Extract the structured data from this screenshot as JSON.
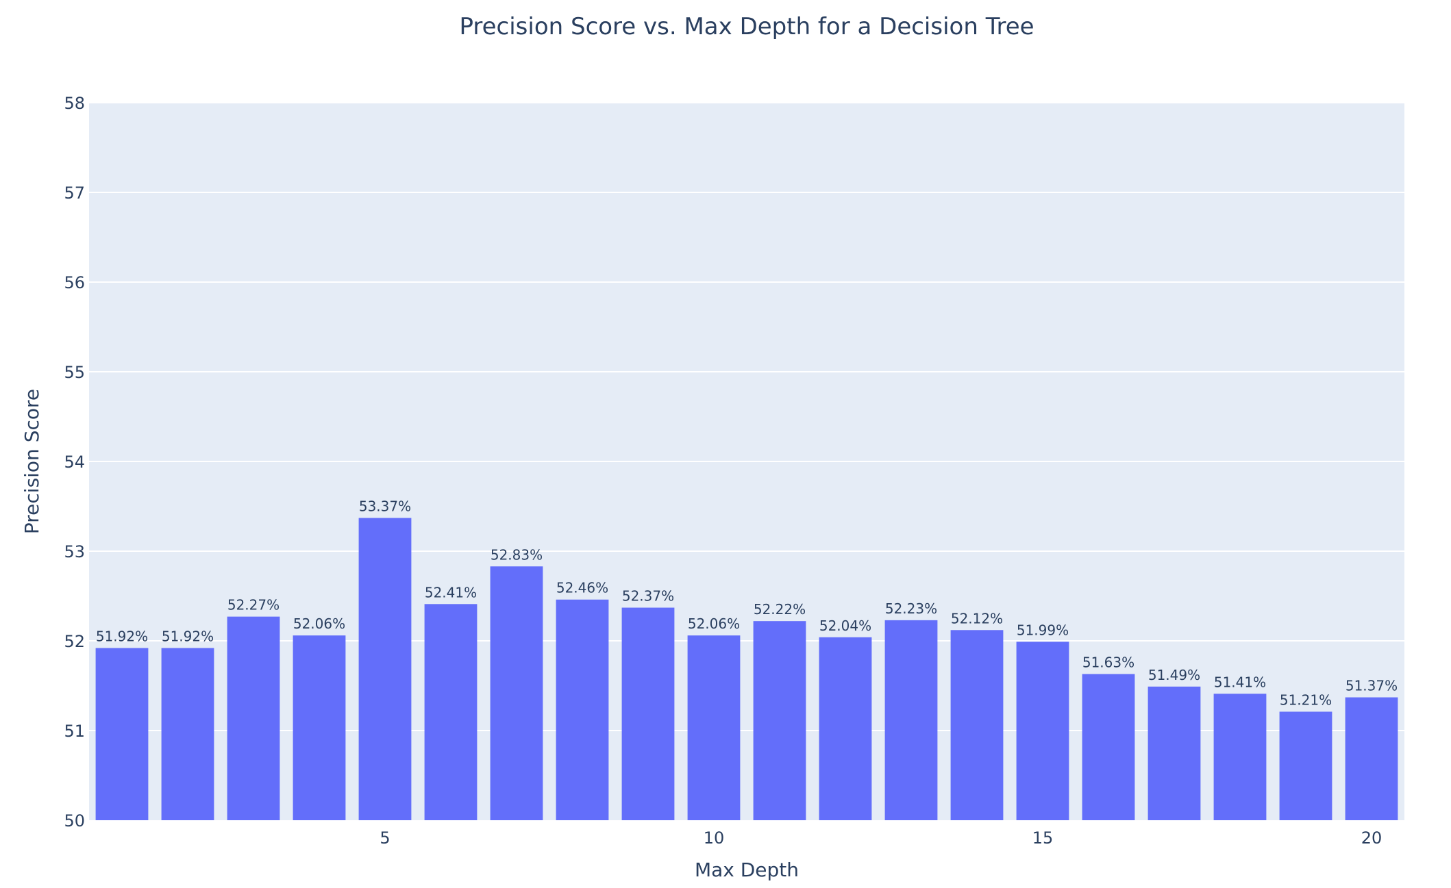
{
  "chart_data": {
    "type": "bar",
    "title": "Precision Score vs. Max Depth for a Decision Tree",
    "xlabel": "Max Depth",
    "ylabel": "Precision Score",
    "x": [
      1,
      2,
      3,
      4,
      5,
      6,
      7,
      8,
      9,
      10,
      11,
      12,
      13,
      14,
      15,
      16,
      17,
      18,
      19,
      20
    ],
    "values": [
      51.92,
      51.92,
      52.27,
      52.06,
      53.37,
      52.41,
      52.83,
      52.46,
      52.37,
      52.06,
      52.22,
      52.04,
      52.23,
      52.12,
      51.99,
      51.63,
      51.49,
      51.41,
      51.21,
      51.37
    ],
    "data_labels": [
      "51.92%",
      "51.92%",
      "52.27%",
      "52.06%",
      "53.37%",
      "52.41%",
      "52.83%",
      "52.46%",
      "52.37%",
      "52.06%",
      "52.22%",
      "52.04%",
      "52.23%",
      "52.12%",
      "51.99%",
      "51.63%",
      "51.49%",
      "51.41%",
      "51.21%",
      "51.37%"
    ],
    "ylim": [
      50,
      58
    ],
    "xlim": [
      0.5,
      20.5
    ],
    "y_ticks": [
      "50",
      "51",
      "52",
      "53",
      "54",
      "55",
      "56",
      "57",
      "58"
    ],
    "x_ticks": [
      "5",
      "10",
      "15",
      "20"
    ],
    "grid": true,
    "colors": {
      "bar": "#636efa",
      "plot_background": "#e5ecf6",
      "gridline": "#ffffff",
      "text": "#2a3f5f"
    }
  }
}
